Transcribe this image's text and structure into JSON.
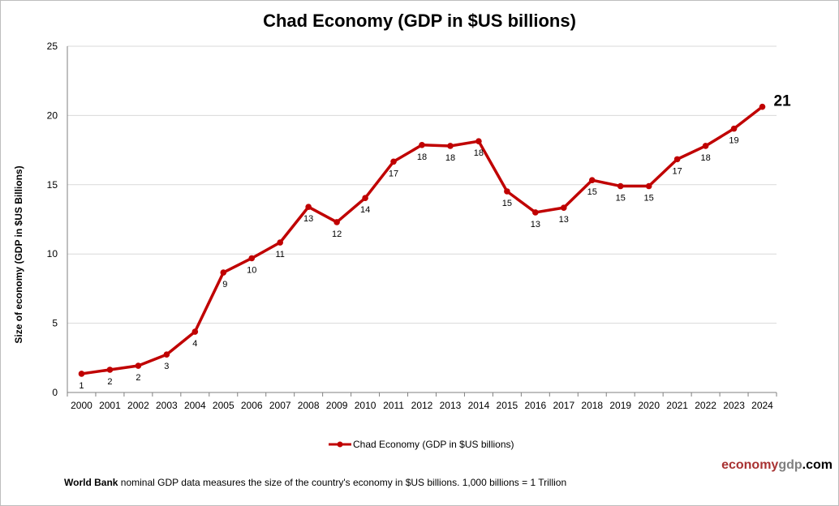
{
  "chart_data": {
    "type": "line",
    "title": "Chad Economy (GDP in $US billions)",
    "xlabel": "",
    "ylabel": "Size of economy (GDP in $US Billions)",
    "ylim": [
      0,
      25
    ],
    "yticks": [
      0,
      5,
      10,
      15,
      20,
      25
    ],
    "grid": true,
    "legend_position": "bottom",
    "categories": [
      "2000",
      "2001",
      "2002",
      "2003",
      "2004",
      "2005",
      "2006",
      "2007",
      "2008",
      "2009",
      "2010",
      "2011",
      "2012",
      "2013",
      "2014",
      "2015",
      "2016",
      "2017",
      "2018",
      "2019",
      "2020",
      "2021",
      "2022",
      "2023",
      "2024"
    ],
    "series": [
      {
        "name": "Chad Economy (GDP in $US billions)",
        "color": "#c00000",
        "values": [
          1.35,
          1.64,
          1.93,
          2.74,
          4.39,
          8.66,
          9.69,
          10.83,
          13.4,
          12.3,
          14.04,
          16.67,
          17.87,
          17.8,
          18.14,
          14.52,
          13.0,
          13.34,
          15.33,
          14.9,
          14.9,
          16.84,
          17.8,
          19.05,
          20.63
        ],
        "data_labels": [
          "1",
          "2",
          "2",
          "3",
          "4",
          "9",
          "10",
          "11",
          "13",
          "12",
          "14",
          "17",
          "18",
          "18",
          "18",
          "15",
          "13",
          "13",
          "15",
          "15",
          "15",
          "17",
          "18",
          "19",
          "21"
        ]
      }
    ]
  },
  "brand": {
    "part1": "economy",
    "part2": "gdp",
    "part3": ".com",
    "color1": "#a83232",
    "color2": "#808080"
  },
  "footnote": {
    "bold": "World Bank",
    "text": " nominal GDP data  measures the size of the country's economy in $US billions. 1,000 billions = 1 Trillion"
  }
}
